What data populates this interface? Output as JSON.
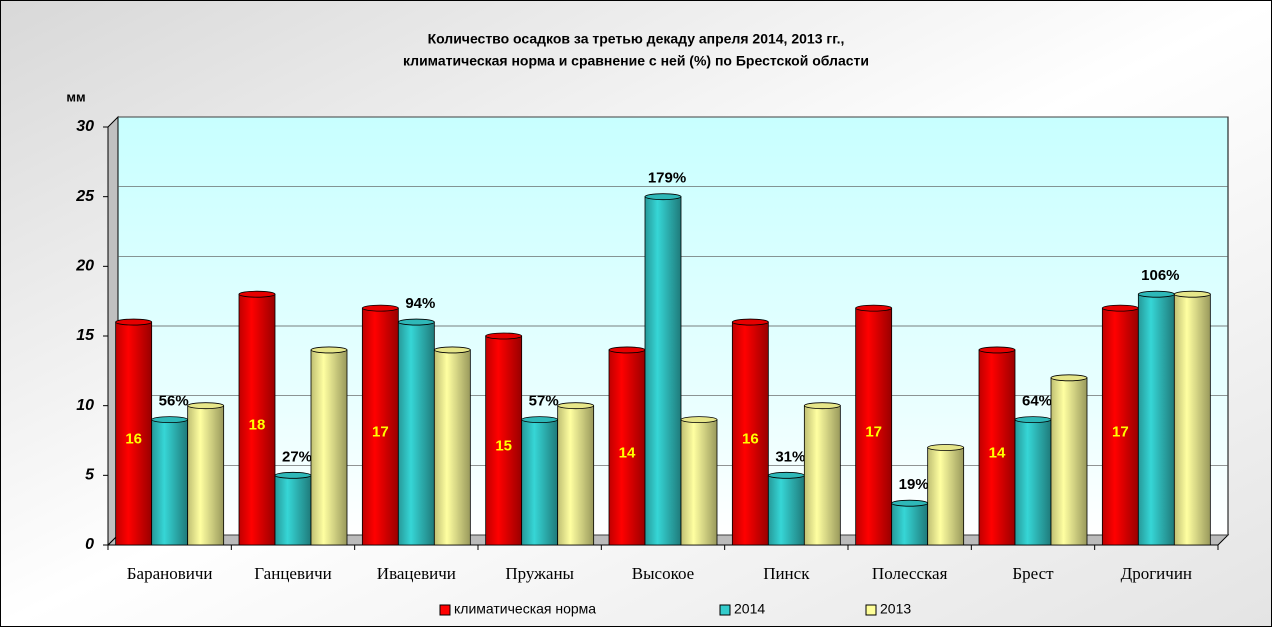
{
  "chart_data": {
    "type": "bar",
    "title": "Количество осадков за третью декаду апреля 2014, 2013 гг.,",
    "subtitle": "климатическая норма и сравнение с ней (%) по Брестской области",
    "y_label": "мм",
    "categories": [
      "Барановичи",
      "Ганцевичи",
      "Ивацевичи",
      "Пружаны",
      "Высокое",
      "Пинск",
      "Полесская",
      "Брест",
      "Дрогичин"
    ],
    "series": [
      {
        "name": "климатическая норма",
        "color": "#ff0000",
        "values": [
          16,
          18,
          17,
          15,
          14,
          16,
          17,
          14,
          17
        ]
      },
      {
        "name": "2014",
        "color": "#33cccc",
        "values": [
          9,
          5,
          16,
          9,
          25,
          5,
          3,
          9,
          18
        ]
      },
      {
        "name": "2013",
        "color": "#ffff99",
        "values": [
          10,
          14,
          14,
          10,
          9,
          10,
          7,
          12,
          18
        ]
      }
    ],
    "annotations": [
      "56%",
      "27%",
      "94%",
      "57%",
      "179%",
      "31%",
      "19%",
      "64%",
      "106%"
    ],
    "ylim": [
      0,
      30
    ],
    "yticks": [
      0,
      5,
      10,
      15,
      20,
      25,
      30
    ],
    "grid": true,
    "legend": "bottom"
  }
}
